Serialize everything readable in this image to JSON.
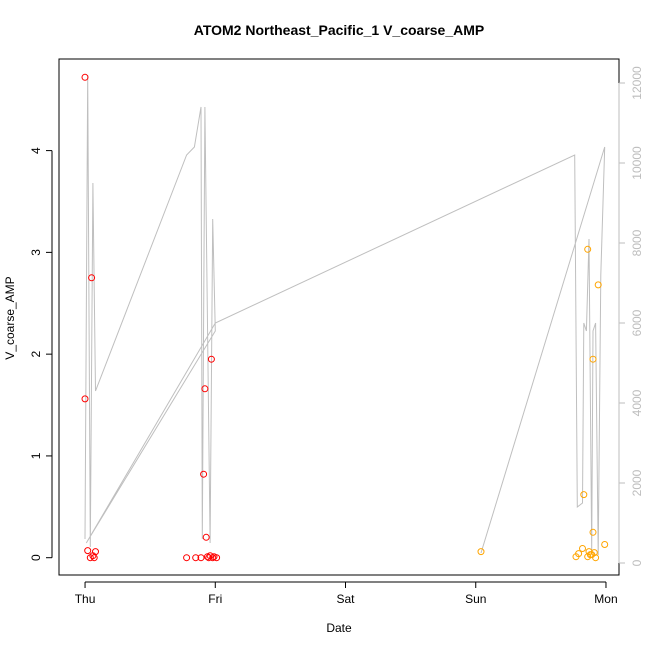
{
  "chart_data": {
    "type": "scatter",
    "title": "ATOM2 Northeast_Pacific_1 V_coarse_AMP",
    "xlabel": "Date",
    "ylabel": "V_coarse_AMP",
    "x_ticks": [
      "Thu",
      "Fri",
      "Sat",
      "Sun",
      "Mon"
    ],
    "x_range_days": [
      -0.2,
      4.1
    ],
    "y_left": {
      "range": [
        -0.17,
        4.9
      ],
      "ticks": [
        0,
        1,
        2,
        3,
        4
      ]
    },
    "y_right": {
      "range": [
        -300,
        12600
      ],
      "ticks": [
        0,
        2000,
        4000,
        6000,
        8000,
        10000,
        12000
      ]
    },
    "grid": false,
    "colors": {
      "red_points": "#ff0000",
      "orange_points": "#ffa500",
      "line": "#bfbfbf",
      "axis": "#000000",
      "right_axis": "#bdbdbd"
    },
    "series": [
      {
        "color": "#ff0000",
        "marker": "open-circle",
        "points": [
          [
            0.0,
            4.72
          ],
          [
            0.0,
            1.56
          ],
          [
            0.02,
            0.07
          ],
          [
            0.04,
            0.0
          ],
          [
            0.05,
            2.75
          ],
          [
            0.06,
            0.02
          ],
          [
            0.07,
            0.0
          ],
          [
            0.08,
            0.06
          ],
          [
            0.78,
            0.0
          ],
          [
            0.85,
            0.0
          ],
          [
            0.89,
            0.0
          ],
          [
            0.91,
            0.82
          ],
          [
            0.92,
            1.66
          ],
          [
            0.93,
            0.2
          ],
          [
            0.94,
            0.01
          ],
          [
            0.95,
            0.0
          ],
          [
            0.96,
            0.02
          ],
          [
            0.97,
            1.95
          ],
          [
            0.98,
            0.0
          ],
          [
            0.99,
            0.01
          ],
          [
            1.01,
            0.0
          ]
        ]
      },
      {
        "color": "#ffa500",
        "marker": "open-circle",
        "points": [
          [
            3.04,
            0.06
          ],
          [
            3.77,
            0.01
          ],
          [
            3.79,
            0.04
          ],
          [
            3.82,
            0.09
          ],
          [
            3.83,
            0.62
          ],
          [
            3.86,
            3.03
          ],
          [
            3.86,
            0.01
          ],
          [
            3.87,
            0.06
          ],
          [
            3.88,
            0.03
          ],
          [
            3.89,
            0.03
          ],
          [
            3.9,
            1.95
          ],
          [
            3.9,
            0.25
          ],
          [
            3.91,
            0.05
          ],
          [
            3.92,
            0.0
          ],
          [
            3.94,
            2.68
          ],
          [
            3.99,
            0.13
          ]
        ]
      }
    ],
    "line_series": {
      "color": "#bfbfbf",
      "axis": "right",
      "points": [
        [
          0.0,
          600
        ],
        [
          0.02,
          12200
        ],
        [
          0.04,
          400
        ],
        [
          0.06,
          9500
        ],
        [
          0.08,
          4300
        ],
        [
          0.78,
          10200
        ],
        [
          0.84,
          10400
        ],
        [
          0.89,
          11400
        ],
        [
          0.9,
          600
        ],
        [
          0.92,
          11400
        ],
        [
          0.96,
          500
        ],
        [
          0.98,
          8600
        ],
        [
          1.0,
          5800
        ],
        [
          0.01,
          500
        ],
        [
          1.0,
          6000
        ],
        [
          3.76,
          10200
        ],
        [
          3.78,
          1400
        ],
        [
          3.82,
          1500
        ],
        [
          3.83,
          6000
        ],
        [
          3.85,
          5800
        ],
        [
          3.87,
          8100
        ],
        [
          3.89,
          300
        ],
        [
          3.9,
          5800
        ],
        [
          3.92,
          6000
        ],
        [
          3.94,
          200
        ],
        [
          3.96,
          7200
        ],
        [
          3.99,
          10400
        ],
        [
          3.04,
          250
        ]
      ]
    }
  }
}
